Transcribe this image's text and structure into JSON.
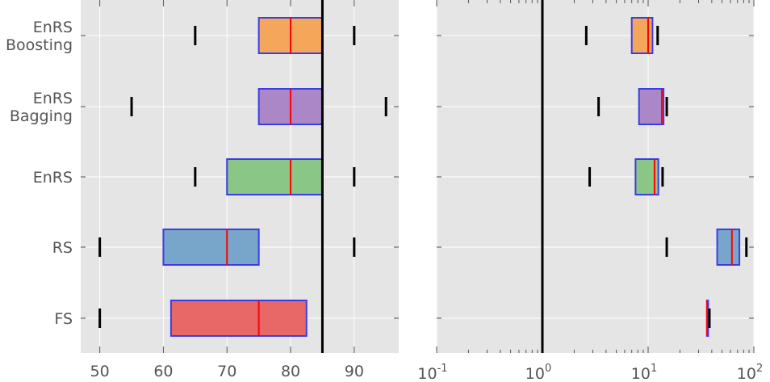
{
  "chart_data": [
    {
      "type": "boxplot",
      "orientation": "horizontal",
      "categories": [
        "EnRS\nBoosting",
        "EnRS\nBagging",
        "EnRS",
        "RS",
        "FS"
      ],
      "boxes": [
        {
          "category": "EnRS\nBoosting",
          "whisker_low": 65,
          "q1": 75,
          "median": 80,
          "q3": 85,
          "whisker_high": 90,
          "color": "#f5a04a"
        },
        {
          "category": "EnRS\nBagging",
          "whisker_low": 55,
          "q1": 75,
          "median": 80,
          "q3": 85,
          "whisker_high": 95,
          "color": "#a47cc4"
        },
        {
          "category": "EnRS",
          "whisker_low": 65,
          "q1": 70,
          "median": 80,
          "q3": 85,
          "whisker_high": 90,
          "color": "#7fc27a"
        },
        {
          "category": "RS",
          "whisker_low": 50,
          "q1": 60,
          "median": 70,
          "q3": 75,
          "whisker_high": 90,
          "color": "#6c9ec8"
        },
        {
          "category": "FS",
          "whisker_low": 50,
          "q1": 61.2,
          "median": 75,
          "q3": 82.5,
          "whisker_high": null,
          "color": "#e85a5a"
        }
      ],
      "reference_line": 85,
      "xlim": [
        47,
        97
      ],
      "xticks": [
        "50",
        "60",
        "70",
        "80",
        "90"
      ],
      "grid": true
    },
    {
      "type": "boxplot",
      "orientation": "horizontal",
      "x_scale": "log",
      "boxes": [
        {
          "category": "EnRS\nBoosting",
          "whisker_low": 2.6,
          "q1": 7,
          "median": 10,
          "q3": 11,
          "whisker_high": 12.3,
          "color": "#f5a04a"
        },
        {
          "category": "EnRS\nBagging",
          "whisker_low": 3.4,
          "q1": 8.2,
          "median": 13.5,
          "q3": 14,
          "whisker_high": 15,
          "color": "#a47cc4"
        },
        {
          "category": "EnRS",
          "whisker_low": 2.8,
          "q1": 7.6,
          "median": 11.5,
          "q3": 12.5,
          "whisker_high": 13.7,
          "color": "#7fc27a"
        },
        {
          "category": "RS",
          "whisker_low": 15,
          "q1": 45,
          "median": 62,
          "q3": 73,
          "whisker_high": 85,
          "color": "#6c9ec8"
        },
        {
          "category": "FS",
          "whisker_low": null,
          "q1": 36,
          "median": 36,
          "q3": 36.5,
          "whisker_high": 38,
          "color": "#e85a5a"
        }
      ],
      "reference_line": 1,
      "xlim": [
        0.1,
        100
      ],
      "xticks": [
        {
          "base": "10",
          "exp": "-1"
        },
        {
          "base": "10",
          "exp": "0"
        },
        {
          "base": "10",
          "exp": "1"
        },
        {
          "base": "10",
          "exp": "2"
        }
      ],
      "grid": true
    }
  ]
}
